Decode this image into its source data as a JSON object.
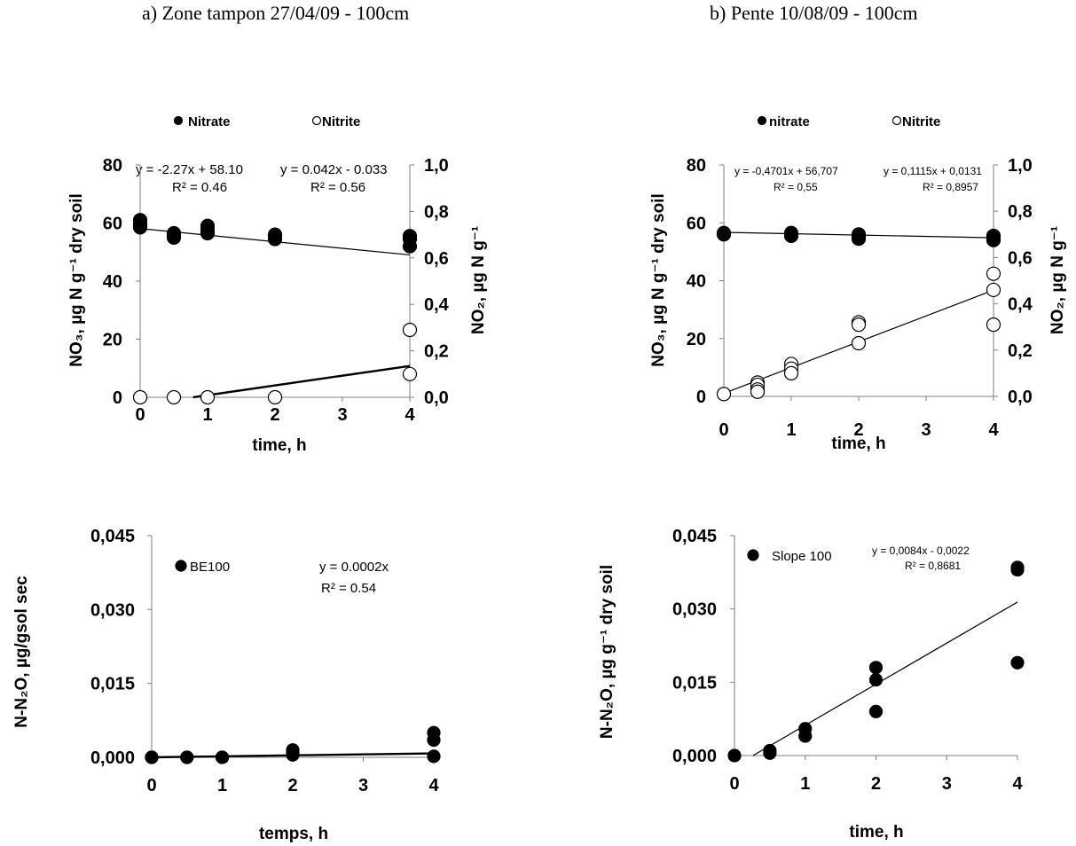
{
  "panels": {
    "a_title": "a) Zone tampon 27/04/09 - 100cm",
    "b_title": "b) Pente 10/08/09 - 100cm"
  },
  "chart_data": [
    {
      "id": "top-left",
      "type": "scatter",
      "xlabel": "time, h",
      "ylabel": "NO₃, µg N g⁻¹ dry soil",
      "y2label": "NO₂, µg N g⁻¹",
      "xticks": [
        "0",
        "1",
        "2",
        "3",
        "4"
      ],
      "yticks": [
        "0",
        "20",
        "40",
        "60",
        "80"
      ],
      "y2ticks": [
        "0,0",
        "0,2",
        "0,4",
        "0,6",
        "0,8",
        "1,0"
      ],
      "xlim": [
        0,
        4
      ],
      "ylim": [
        0,
        80
      ],
      "y2lim": [
        0,
        1
      ],
      "legend_position": "top",
      "series": [
        {
          "name": "Nitrate",
          "marker": "filled-circle",
          "axis": "left",
          "x": [
            0,
            0,
            0,
            0.5,
            0.5,
            0.5,
            1,
            1,
            1,
            2,
            2,
            2,
            4,
            4,
            4
          ],
          "y": [
            61,
            59.5,
            58.5,
            56.5,
            55.5,
            55,
            59,
            57.5,
            56.5,
            56,
            55.5,
            54.5,
            55.5,
            54.5,
            52
          ]
        },
        {
          "name": "Nitrite",
          "marker": "open-circle",
          "axis": "right",
          "x": [
            0,
            0.5,
            1,
            2,
            4,
            4
          ],
          "y": [
            0,
            0,
            0,
            0,
            0.29,
            0.1
          ]
        }
      ],
      "trendlines": [
        {
          "axis": "left",
          "slope": -2.27,
          "intercept": 58.1,
          "equation": "y = -2.27x + 58.10",
          "r2": "R² = 0.46"
        },
        {
          "axis": "right",
          "slope": 0.042,
          "intercept": -0.033,
          "equation": "y = 0.042x - 0.033",
          "r2": "R² = 0.56"
        }
      ]
    },
    {
      "id": "top-right",
      "type": "scatter",
      "xlabel": "time, h",
      "ylabel": "NO₃, µg N g⁻¹ dry soil",
      "y2label": "NO₂, µg N g⁻¹",
      "xticks": [
        "0",
        "1",
        "2",
        "3",
        "4"
      ],
      "yticks": [
        "0",
        "20",
        "40",
        "60",
        "80"
      ],
      "y2ticks": [
        "0,0",
        "0,2",
        "0,4",
        "0,6",
        "0,8",
        "1,0"
      ],
      "xlim": [
        0,
        4
      ],
      "ylim": [
        0,
        80
      ],
      "y2lim": [
        0,
        1
      ],
      "legend_position": "top",
      "series": [
        {
          "name": "nitrate",
          "marker": "filled-circle",
          "axis": "left",
          "x": [
            0,
            0,
            1,
            1,
            2,
            2,
            2,
            4,
            4,
            4
          ],
          "y": [
            56.5,
            56,
            56.5,
            55.5,
            56,
            55,
            54.5,
            55.5,
            55,
            54
          ],
          "_": ""
        },
        {
          "name": "Nitrite",
          "marker": "open-circle",
          "axis": "right",
          "x": [
            0,
            0.5,
            0.5,
            0.5,
            0.5,
            1,
            1,
            1,
            2,
            2,
            2,
            4,
            4,
            4
          ],
          "y": [
            0.01,
            0.06,
            0.05,
            0.03,
            0.02,
            0.14,
            0.12,
            0.1,
            0.32,
            0.31,
            0.23,
            0.53,
            0.46,
            0.31
          ]
        }
      ],
      "trendlines": [
        {
          "axis": "left",
          "slope": -0.4701,
          "intercept": 56.707,
          "equation": "y = -0,4701x + 56,707",
          "r2": "R² = 0,55"
        },
        {
          "axis": "right",
          "slope": 0.1115,
          "intercept": 0.0131,
          "equation": "y = 0,1115x + 0,0131",
          "r2": "R² = 0,8957"
        }
      ]
    },
    {
      "id": "bottom-left",
      "type": "scatter",
      "xlabel": "temps, h",
      "ylabel": "N-N₂O, µg/gsol sec",
      "xticks": [
        "0",
        "1",
        "2",
        "3",
        "4"
      ],
      "yticks": [
        "0,000",
        "0,015",
        "0,030",
        "0,045"
      ],
      "xlim": [
        0,
        4
      ],
      "ylim": [
        0,
        0.045
      ],
      "legend_position": "top-left",
      "series": [
        {
          "name": "BE100",
          "marker": "filled-circle",
          "axis": "left",
          "x": [
            0,
            0,
            0.5,
            0.5,
            1,
            1,
            2,
            2,
            2,
            4,
            4,
            4
          ],
          "y": [
            0,
            0,
            0,
            0,
            0,
            0,
            0.001,
            0.0005,
            0.0015,
            0.005,
            0.0035,
            0.0002
          ]
        }
      ],
      "trendlines": [
        {
          "axis": "left",
          "slope": 0.0002,
          "intercept": 0,
          "x_start": 0,
          "equation": "y = 0.0002x",
          "r2": "R² = 0.54"
        }
      ]
    },
    {
      "id": "bottom-right",
      "type": "scatter",
      "xlabel": "time, h",
      "ylabel": "N-N₂O, µg g⁻¹ dry soil",
      "xticks": [
        "0",
        "1",
        "2",
        "3",
        "4"
      ],
      "yticks": [
        "0,000",
        "0,015",
        "0,030",
        "0,045"
      ],
      "xlim": [
        0,
        4
      ],
      "ylim": [
        0,
        0.045
      ],
      "legend_position": "top-left",
      "series": [
        {
          "name": "Slope 100",
          "marker": "filled-circle",
          "axis": "left",
          "x": [
            0,
            0.5,
            0.5,
            1,
            1,
            2,
            2,
            2,
            4,
            4,
            4
          ],
          "y": [
            0,
            0.001,
            0.0005,
            0.0055,
            0.004,
            0.018,
            0.0155,
            0.009,
            0.0385,
            0.038,
            0.019
          ]
        }
      ],
      "trendlines": [
        {
          "axis": "left",
          "slope": 0.0084,
          "intercept": -0.0022,
          "equation": "y = 0,0084x - 0,0022",
          "r2": "R² = 0,8681"
        }
      ]
    }
  ]
}
